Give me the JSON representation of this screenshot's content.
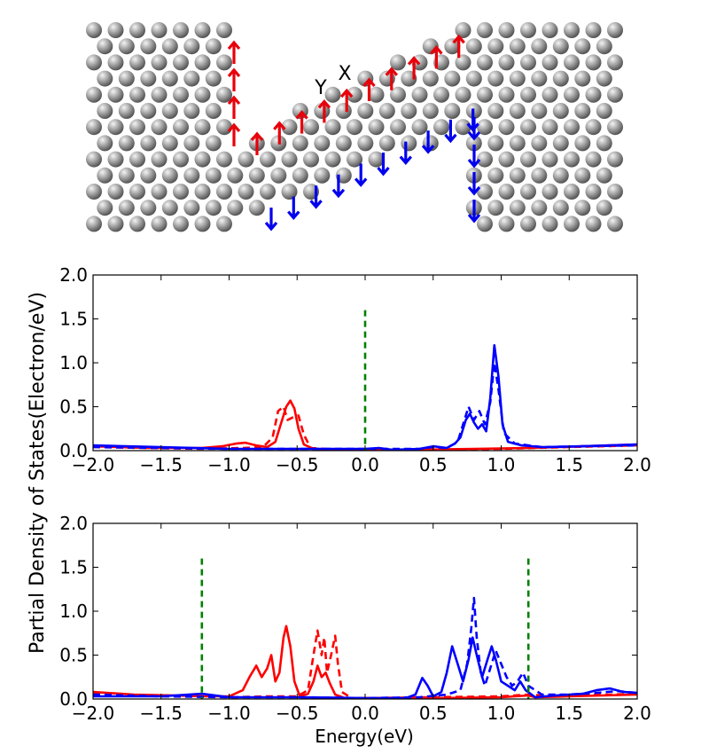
{
  "figure": {
    "shared_ylabel": "Partial Density of States(Electron/eV)",
    "shared_xlabel": "Energy(eV)"
  },
  "structure": {
    "labels": [
      "Y",
      "X"
    ],
    "colors": {
      "atom": "#8a8a8a",
      "spin_up": "#e8000b",
      "spin_down": "#0000ee"
    }
  },
  "chart_data": [
    {
      "type": "line",
      "title": "",
      "xlabel": "",
      "ylabel": "",
      "xlim": [
        -2.0,
        2.0
      ],
      "ylim": [
        0.0,
        2.0
      ],
      "x_ticks": [
        -2.0,
        -1.5,
        -1.0,
        -0.5,
        0.0,
        0.5,
        1.0,
        1.5,
        2.0
      ],
      "x_tick_labels": [
        "−2.0",
        "−1.5",
        "−1.0",
        "−0.5",
        "0.0",
        "0.5",
        "1.0",
        "1.5",
        "2.0"
      ],
      "y_ticks": [
        0.0,
        0.5,
        1.0,
        1.5,
        2.0
      ],
      "y_tick_labels": [
        "0.0",
        "0.5",
        "1.0",
        "1.5",
        "2.0"
      ],
      "markers": [
        {
          "x": 0.0,
          "y_max": 1.6,
          "color": "#008000"
        }
      ],
      "series": [
        {
          "name": "spin-up solid",
          "color": "#ff0000",
          "dash": "solid",
          "points": [
            [
              -2.0,
              0.05
            ],
            [
              -1.6,
              0.03
            ],
            [
              -1.2,
              0.03
            ],
            [
              -1.05,
              0.05
            ],
            [
              -0.95,
              0.08
            ],
            [
              -0.88,
              0.09
            ],
            [
              -0.8,
              0.06
            ],
            [
              -0.72,
              0.04
            ],
            [
              -0.66,
              0.1
            ],
            [
              -0.62,
              0.3
            ],
            [
              -0.58,
              0.5
            ],
            [
              -0.55,
              0.57
            ],
            [
              -0.52,
              0.48
            ],
            [
              -0.49,
              0.25
            ],
            [
              -0.45,
              0.07
            ],
            [
              -0.38,
              0.02
            ],
            [
              -0.2,
              0.01
            ],
            [
              0.0,
              0.01
            ],
            [
              0.4,
              0.01
            ],
            [
              0.8,
              0.02
            ],
            [
              1.2,
              0.03
            ],
            [
              1.6,
              0.05
            ],
            [
              2.0,
              0.07
            ]
          ]
        },
        {
          "name": "spin-up dashed",
          "color": "#ff0000",
          "dash": "dashed",
          "points": [
            [
              -2.0,
              0.04
            ],
            [
              -1.6,
              0.03
            ],
            [
              -1.2,
              0.02
            ],
            [
              -0.9,
              0.03
            ],
            [
              -0.75,
              0.04
            ],
            [
              -0.68,
              0.15
            ],
            [
              -0.64,
              0.45
            ],
            [
              -0.6,
              0.5
            ],
            [
              -0.57,
              0.35
            ],
            [
              -0.53,
              0.38
            ],
            [
              -0.49,
              0.4
            ],
            [
              -0.45,
              0.18
            ],
            [
              -0.4,
              0.03
            ],
            [
              -0.2,
              0.01
            ],
            [
              0.0,
              0.01
            ],
            [
              0.5,
              0.01
            ],
            [
              1.0,
              0.02
            ],
            [
              1.5,
              0.04
            ],
            [
              2.0,
              0.06
            ]
          ]
        },
        {
          "name": "spin-down solid",
          "color": "#0000ff",
          "dash": "solid",
          "points": [
            [
              -2.0,
              0.06
            ],
            [
              -1.5,
              0.04
            ],
            [
              -1.0,
              0.02
            ],
            [
              -0.5,
              0.02
            ],
            [
              0.0,
              0.02
            ],
            [
              0.1,
              0.03
            ],
            [
              0.2,
              0.01
            ],
            [
              0.4,
              0.02
            ],
            [
              0.5,
              0.05
            ],
            [
              0.6,
              0.03
            ],
            [
              0.66,
              0.08
            ],
            [
              0.7,
              0.15
            ],
            [
              0.74,
              0.35
            ],
            [
              0.77,
              0.42
            ],
            [
              0.8,
              0.32
            ],
            [
              0.83,
              0.25
            ],
            [
              0.86,
              0.3
            ],
            [
              0.89,
              0.22
            ],
            [
              0.92,
              0.6
            ],
            [
              0.95,
              1.2
            ],
            [
              0.98,
              0.85
            ],
            [
              1.01,
              0.3
            ],
            [
              1.05,
              0.1
            ],
            [
              1.15,
              0.06
            ],
            [
              1.3,
              0.04
            ],
            [
              1.6,
              0.05
            ],
            [
              2.0,
              0.07
            ]
          ]
        },
        {
          "name": "spin-down dashed",
          "color": "#0000ff",
          "dash": "dashed",
          "points": [
            [
              -2.0,
              0.04
            ],
            [
              -1.5,
              0.03
            ],
            [
              -1.0,
              0.02
            ],
            [
              -0.5,
              0.02
            ],
            [
              0.0,
              0.02
            ],
            [
              0.4,
              0.02
            ],
            [
              0.5,
              0.04
            ],
            [
              0.6,
              0.03
            ],
            [
              0.68,
              0.1
            ],
            [
              0.73,
              0.35
            ],
            [
              0.76,
              0.5
            ],
            [
              0.8,
              0.35
            ],
            [
              0.84,
              0.45
            ],
            [
              0.88,
              0.3
            ],
            [
              0.92,
              0.55
            ],
            [
              0.95,
              1.0
            ],
            [
              0.98,
              0.7
            ],
            [
              1.02,
              0.2
            ],
            [
              1.1,
              0.08
            ],
            [
              1.3,
              0.04
            ],
            [
              1.6,
              0.05
            ],
            [
              2.0,
              0.06
            ]
          ]
        }
      ]
    },
    {
      "type": "line",
      "title": "",
      "xlabel": "Energy(eV)",
      "ylabel": "",
      "xlim": [
        -2.0,
        2.0
      ],
      "ylim": [
        0.0,
        2.0
      ],
      "x_ticks": [
        -2.0,
        -1.5,
        -1.0,
        -0.5,
        0.0,
        0.5,
        1.0,
        1.5,
        2.0
      ],
      "x_tick_labels": [
        "−2.0",
        "−1.5",
        "−1.0",
        "−0.5",
        "0.0",
        "0.5",
        "1.0",
        "1.5",
        "2.0"
      ],
      "y_ticks": [
        0.0,
        0.5,
        1.0,
        1.5,
        2.0
      ],
      "y_tick_labels": [
        "0.0",
        "0.5",
        "1.0",
        "1.5",
        "2.0"
      ],
      "markers": [
        {
          "x": -1.2,
          "y_max": 1.6,
          "color": "#008000"
        },
        {
          "x": 1.2,
          "y_max": 1.6,
          "color": "#008000"
        }
      ],
      "series": [
        {
          "name": "spin-up solid",
          "color": "#ff0000",
          "dash": "solid",
          "points": [
            [
              -2.0,
              0.08
            ],
            [
              -1.7,
              0.05
            ],
            [
              -1.4,
              0.04
            ],
            [
              -1.2,
              0.03
            ],
            [
              -1.0,
              0.03
            ],
            [
              -0.9,
              0.1
            ],
            [
              -0.85,
              0.25
            ],
            [
              -0.8,
              0.38
            ],
            [
              -0.76,
              0.25
            ],
            [
              -0.72,
              0.35
            ],
            [
              -0.69,
              0.5
            ],
            [
              -0.66,
              0.2
            ],
            [
              -0.63,
              0.3
            ],
            [
              -0.6,
              0.7
            ],
            [
              -0.58,
              0.83
            ],
            [
              -0.55,
              0.6
            ],
            [
              -0.52,
              0.2
            ],
            [
              -0.48,
              0.03
            ],
            [
              -0.42,
              0.06
            ],
            [
              -0.38,
              0.2
            ],
            [
              -0.35,
              0.38
            ],
            [
              -0.32,
              0.25
            ],
            [
              -0.29,
              0.3
            ],
            [
              -0.26,
              0.18
            ],
            [
              -0.22,
              0.05
            ],
            [
              -0.15,
              0.01
            ],
            [
              0.0,
              0.01
            ],
            [
              0.5,
              0.01
            ],
            [
              1.0,
              0.02
            ],
            [
              1.2,
              0.04
            ],
            [
              1.25,
              0.02
            ],
            [
              1.5,
              0.03
            ],
            [
              2.0,
              0.05
            ]
          ]
        },
        {
          "name": "spin-up dashed",
          "color": "#ff0000",
          "dash": "dashed",
          "points": [
            [
              -2.0,
              0.06
            ],
            [
              -1.7,
              0.04
            ],
            [
              -1.4,
              0.03
            ],
            [
              -1.2,
              0.03
            ],
            [
              -1.0,
              0.02
            ],
            [
              -0.7,
              0.03
            ],
            [
              -0.5,
              0.03
            ],
            [
              -0.42,
              0.1
            ],
            [
              -0.38,
              0.5
            ],
            [
              -0.35,
              0.78
            ],
            [
              -0.32,
              0.5
            ],
            [
              -0.3,
              0.7
            ],
            [
              -0.28,
              0.3
            ],
            [
              -0.25,
              0.5
            ],
            [
              -0.22,
              0.72
            ],
            [
              -0.2,
              0.4
            ],
            [
              -0.17,
              0.08
            ],
            [
              -0.1,
              0.01
            ],
            [
              0.0,
              0.01
            ],
            [
              0.5,
              0.02
            ],
            [
              1.0,
              0.03
            ],
            [
              1.2,
              0.05
            ],
            [
              1.4,
              0.03
            ],
            [
              1.6,
              0.04
            ],
            [
              1.8,
              0.05
            ],
            [
              2.0,
              0.06
            ]
          ]
        },
        {
          "name": "spin-down solid",
          "color": "#0000ff",
          "dash": "solid",
          "points": [
            [
              -2.0,
              0.03
            ],
            [
              -1.5,
              0.03
            ],
            [
              -1.2,
              0.06
            ],
            [
              -1.0,
              0.02
            ],
            [
              -0.5,
              0.02
            ],
            [
              0.0,
              0.01
            ],
            [
              0.3,
              0.01
            ],
            [
              0.37,
              0.05
            ],
            [
              0.42,
              0.24
            ],
            [
              0.46,
              0.15
            ],
            [
              0.5,
              0.03
            ],
            [
              0.56,
              0.08
            ],
            [
              0.6,
              0.3
            ],
            [
              0.64,
              0.6
            ],
            [
              0.68,
              0.4
            ],
            [
              0.72,
              0.2
            ],
            [
              0.76,
              0.45
            ],
            [
              0.79,
              0.7
            ],
            [
              0.82,
              0.5
            ],
            [
              0.86,
              0.25
            ],
            [
              0.9,
              0.45
            ],
            [
              0.93,
              0.6
            ],
            [
              0.96,
              0.45
            ],
            [
              1.0,
              0.2
            ],
            [
              1.05,
              0.15
            ],
            [
              1.1,
              0.1
            ],
            [
              1.14,
              0.2
            ],
            [
              1.18,
              0.1
            ],
            [
              1.25,
              0.02
            ],
            [
              1.4,
              0.04
            ],
            [
              1.6,
              0.06
            ],
            [
              1.7,
              0.1
            ],
            [
              1.8,
              0.12
            ],
            [
              1.9,
              0.08
            ],
            [
              2.0,
              0.07
            ]
          ]
        },
        {
          "name": "spin-down dashed",
          "color": "#0000ff",
          "dash": "dashed",
          "points": [
            [
              -2.0,
              0.05
            ],
            [
              -1.5,
              0.03
            ],
            [
              -1.0,
              0.02
            ],
            [
              -0.5,
              0.02
            ],
            [
              0.0,
              0.01
            ],
            [
              0.4,
              0.02
            ],
            [
              0.6,
              0.05
            ],
            [
              0.7,
              0.1
            ],
            [
              0.75,
              0.4
            ],
            [
              0.78,
              0.8
            ],
            [
              0.8,
              1.15
            ],
            [
              0.82,
              0.7
            ],
            [
              0.85,
              0.3
            ],
            [
              0.88,
              0.15
            ],
            [
              0.92,
              0.35
            ],
            [
              0.96,
              0.55
            ],
            [
              1.0,
              0.4
            ],
            [
              1.04,
              0.25
            ],
            [
              1.08,
              0.15
            ],
            [
              1.12,
              0.2
            ],
            [
              1.16,
              0.3
            ],
            [
              1.2,
              0.15
            ],
            [
              1.3,
              0.05
            ],
            [
              1.5,
              0.05
            ],
            [
              1.7,
              0.07
            ],
            [
              1.85,
              0.09
            ],
            [
              2.0,
              0.07
            ]
          ]
        }
      ]
    }
  ]
}
